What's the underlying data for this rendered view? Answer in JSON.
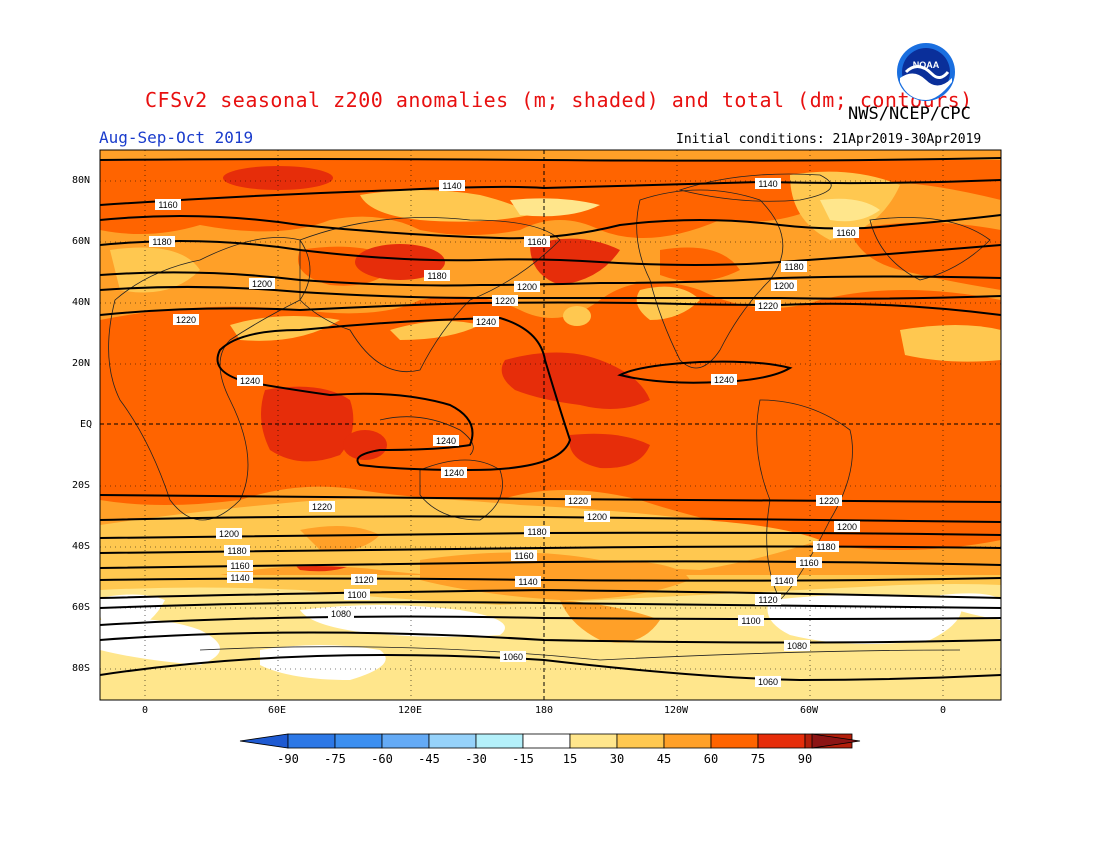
{
  "title": "CFSv2 seasonal z200 anomalies (m; shaded) and total (dm; contours)",
  "agency": "NWS/NCEP/CPC",
  "season": "Aug-Sep-Oct 2019",
  "initial_conditions": "Initial conditions: 21Apr2019-30Apr2019",
  "logo_text": "NOAA",
  "lat_labels": [
    "80N",
    "60N",
    "40N",
    "20N",
    "EQ",
    "20S",
    "40S",
    "60S",
    "80S"
  ],
  "lon_labels": [
    "0",
    "60E",
    "120E",
    "180",
    "120W",
    "60W",
    "0"
  ],
  "colorbar": {
    "labels": [
      "-90",
      "-75",
      "-60",
      "-45",
      "-30",
      "-15",
      "15",
      "30",
      "45",
      "60",
      "75",
      "90"
    ],
    "colors": [
      "#1e5ad2",
      "#2d78e6",
      "#3c8ff0",
      "#64aaf5",
      "#96d2fa",
      "#b4f0fa",
      "#ffffff",
      "#ffe68c",
      "#ffc850",
      "#ffa028",
      "#ff6400",
      "#e62d0a",
      "#b41e0a",
      "#8c1414"
    ]
  },
  "contour_labels": [
    {
      "text": "1140"
    },
    {
      "text": "1140"
    },
    {
      "text": "1160"
    },
    {
      "text": "1160"
    },
    {
      "text": "1160"
    },
    {
      "text": "1180"
    },
    {
      "text": "1180"
    },
    {
      "text": "1180"
    },
    {
      "text": "1200"
    },
    {
      "text": "1200"
    },
    {
      "text": "1200"
    },
    {
      "text": "1220"
    },
    {
      "text": "1220"
    },
    {
      "text": "1220"
    },
    {
      "text": "1240"
    },
    {
      "text": "1240"
    },
    {
      "text": "1240"
    },
    {
      "text": "1240"
    },
    {
      "text": "1240"
    },
    {
      "text": "1220"
    },
    {
      "text": "1220"
    },
    {
      "text": "1220"
    },
    {
      "text": "1200"
    },
    {
      "text": "1200"
    },
    {
      "text": "1200"
    },
    {
      "text": "1180"
    },
    {
      "text": "1180"
    },
    {
      "text": "1180"
    },
    {
      "text": "1160"
    },
    {
      "text": "1160"
    },
    {
      "text": "1160"
    },
    {
      "text": "1140"
    },
    {
      "text": "1140"
    },
    {
      "text": "1140"
    },
    {
      "text": "1120"
    },
    {
      "text": "1120"
    },
    {
      "text": "1100"
    },
    {
      "text": "1100"
    },
    {
      "text": "1080"
    },
    {
      "text": "1080"
    },
    {
      "text": "1060"
    },
    {
      "text": "1060"
    }
  ]
}
